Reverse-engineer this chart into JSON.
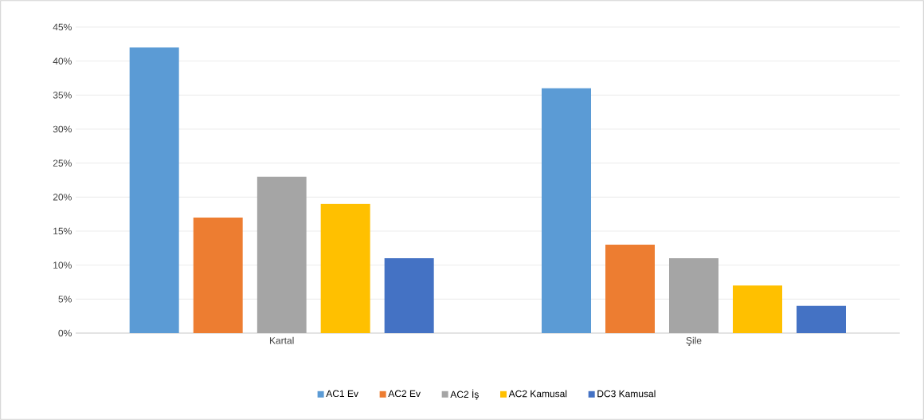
{
  "chart_data": {
    "type": "bar",
    "categories": [
      "Kartal",
      "Şile"
    ],
    "series": [
      {
        "name": "AC1 Ev",
        "color": "#5b9bd5",
        "values": [
          42,
          36
        ]
      },
      {
        "name": "AC2 Ev",
        "color": "#ed7d31",
        "values": [
          17,
          13
        ]
      },
      {
        "name": "AC2 İş",
        "color": "#a5a5a5",
        "values": [
          23,
          11
        ]
      },
      {
        "name": "AC2 Kamusal",
        "color": "#ffc000",
        "values": [
          19,
          7
        ]
      },
      {
        "name": "DC3 Kamusal",
        "color": "#4472c4",
        "values": [
          11,
          4
        ]
      }
    ],
    "ylim": [
      0,
      45
    ],
    "yticks": [
      {
        "value": 0,
        "label": "0%"
      },
      {
        "value": 5,
        "label": "5%"
      },
      {
        "value": 10,
        "label": "10%"
      },
      {
        "value": 15,
        "label": "15%"
      },
      {
        "value": 20,
        "label": "20%"
      },
      {
        "value": 25,
        "label": "25%"
      },
      {
        "value": 30,
        "label": "30%"
      },
      {
        "value": 35,
        "label": "35%"
      },
      {
        "value": 40,
        "label": "40%"
      },
      {
        "value": 45,
        "label": "45%"
      }
    ],
    "grid": "y",
    "legend": "bottom"
  }
}
